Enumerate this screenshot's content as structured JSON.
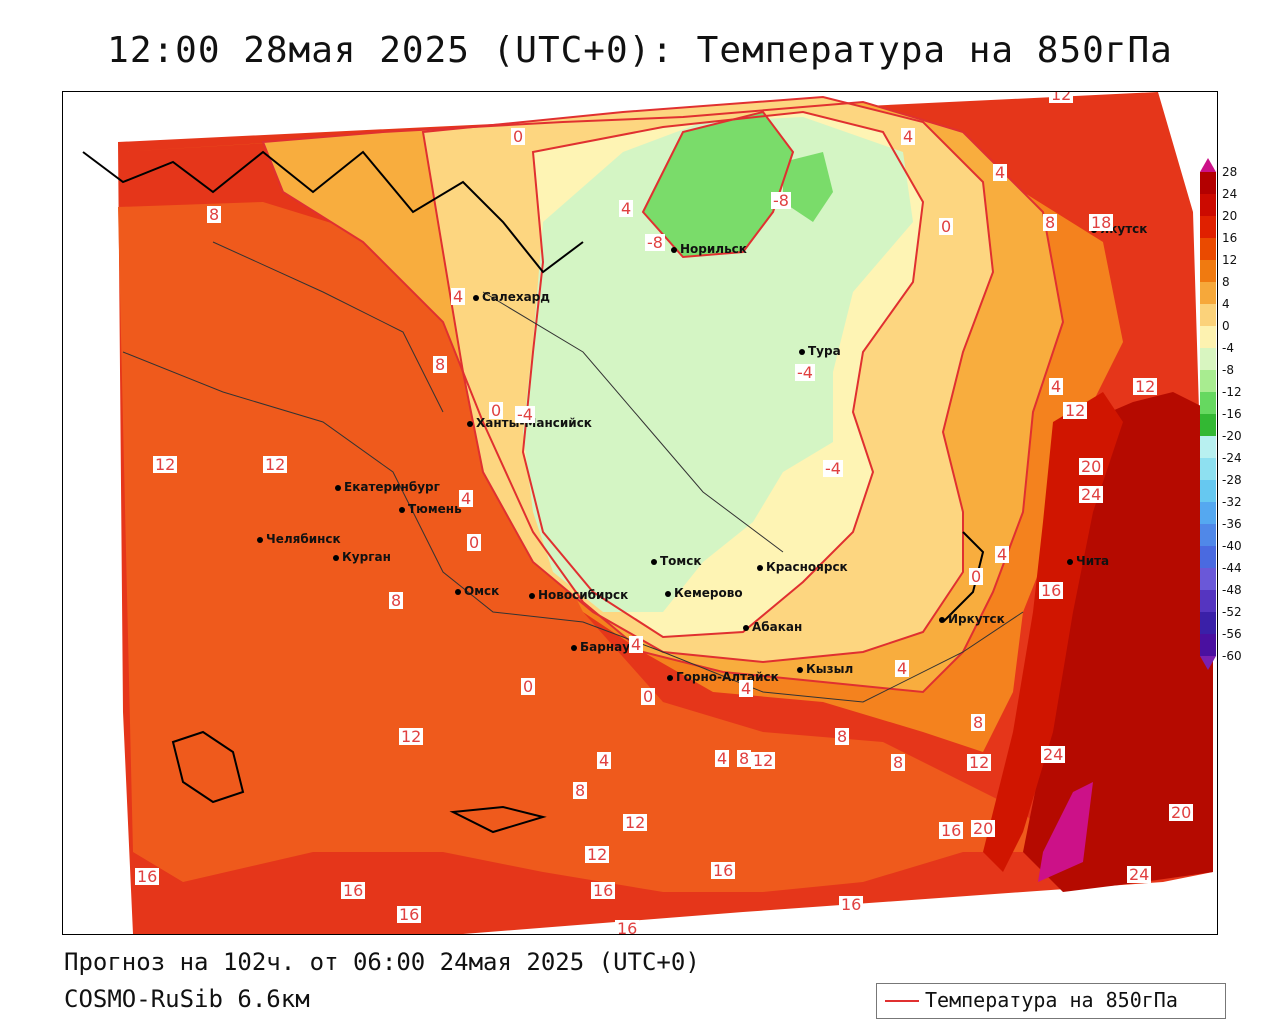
{
  "title": "12:00 28мая 2025 (UTC+0): Температура на 850гПа",
  "footer": {
    "forecast": "Прогноз на 102ч. от 06:00 24мая 2025 (UTC+0)",
    "model": "COSMO-RuSib 6.6км"
  },
  "legend": {
    "label": "Температура на 850гПа",
    "line_color": "#e03030"
  },
  "colorbar": {
    "ticks": [
      "28",
      "24",
      "20",
      "16",
      "12",
      "8",
      "4",
      "0",
      "-4",
      "-8",
      "-12",
      "-16",
      "-20",
      "-24",
      "-28",
      "-32",
      "-36",
      "-40",
      "-44",
      "-48",
      "-52",
      "-56",
      "-60"
    ],
    "colors": [
      "#cc1188",
      "#b30000",
      "#cc0a00",
      "#e02000",
      "#ea4a00",
      "#f07a10",
      "#f6a83a",
      "#fbd27a",
      "#fdf2b0",
      "#d8f5c0",
      "#a8ec90",
      "#66d860",
      "#33b833",
      "#b8f0f0",
      "#8ee0f0",
      "#66c8f0",
      "#55a8f0",
      "#5088e8",
      "#4a6ae0",
      "#6a58d8",
      "#5535c0",
      "#3a20a8",
      "#4a10a0",
      "#7a20b0"
    ]
  },
  "map": {
    "cities": [
      {
        "name": "Норильск"
      },
      {
        "name": "Якутск"
      },
      {
        "name": "Салехард"
      },
      {
        "name": "Тура"
      },
      {
        "name": "Ханты-Мансийск"
      },
      {
        "name": "Екатеринбург"
      },
      {
        "name": "Тюмень"
      },
      {
        "name": "Челябинск"
      },
      {
        "name": "Курган"
      },
      {
        "name": "Омск"
      },
      {
        "name": "Новосибирск"
      },
      {
        "name": "Томск"
      },
      {
        "name": "Кемерово"
      },
      {
        "name": "Красноярск"
      },
      {
        "name": "Барнаул"
      },
      {
        "name": "Абакан"
      },
      {
        "name": "Горно-Алтайск"
      },
      {
        "name": "Кызыл"
      },
      {
        "name": "Иркутск"
      },
      {
        "name": "Чита"
      }
    ],
    "contour_labels": [
      "12",
      "0",
      "4",
      "4",
      "-8",
      "-8",
      "4",
      "0",
      "8",
      "18",
      "8",
      "4",
      "8",
      "-4",
      "0",
      "-4",
      "-4",
      "12",
      "12",
      "12",
      "4",
      "12",
      "20",
      "24",
      "4",
      "0",
      "4",
      "8",
      "16",
      "0",
      "0",
      "0",
      "4",
      "4",
      "4",
      "8",
      "12",
      "8",
      "8",
      "8",
      "12",
      "24",
      "4",
      "4",
      "8",
      "12",
      "16",
      "20",
      "20",
      "12",
      "12",
      "16",
      "24",
      "16",
      "16",
      "16",
      "16",
      "16",
      "16"
    ]
  }
}
